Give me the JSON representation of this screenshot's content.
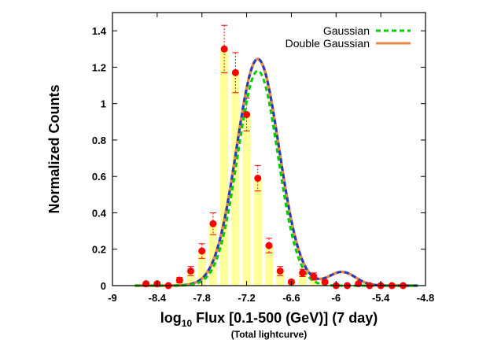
{
  "chart_data": {
    "type": "bar",
    "xlabel_main": "log",
    "xlabel_sub": "10",
    "xlabel_rest": " Flux [0.1-500 (GeV)] (7 day)",
    "xlabel_second": "(Total lightcurve)",
    "ylabel": "Normalized Counts",
    "xlim": [
      -9,
      -4.8
    ],
    "ylim": [
      0,
      1.5
    ],
    "xticks": [
      -9,
      -8.4,
      -7.8,
      -7.2,
      -6.6,
      -6,
      -5.4,
      -4.8
    ],
    "yticks": [
      0,
      0.2,
      0.4,
      0.6,
      0.8,
      1,
      1.2,
      1.4
    ],
    "xtick_labels": [
      "-9",
      "-8.4",
      "-7.8",
      "-7.2",
      "-6.6",
      "-6",
      "-5.4",
      "-4.8"
    ],
    "ytick_labels": [
      "0",
      "0.2",
      "0.4",
      "0.6",
      "0.8",
      "1",
      "1.2",
      "1.4"
    ],
    "bin_width": 0.15,
    "histogram": {
      "x": [
        -8.55,
        -8.4,
        -8.25,
        -8.1,
        -7.95,
        -7.8,
        -7.65,
        -7.5,
        -7.35,
        -7.2,
        -7.05,
        -6.9,
        -6.75,
        -6.6,
        -6.45,
        -6.3,
        -6.15,
        -6.0,
        -5.85,
        -5.7,
        -5.55,
        -5.4,
        -5.25,
        -5.1,
        -4.95
      ],
      "y": [
        0.01,
        0.01,
        0.0,
        0.03,
        0.08,
        0.19,
        0.34,
        1.3,
        1.17,
        0.94,
        0.59,
        0.22,
        0.08,
        0.02,
        0.07,
        0.05,
        0.02,
        0.0,
        0.0,
        0.01,
        0.0,
        0.0,
        0.0,
        0.0,
        0.0
      ],
      "err": [
        0.01,
        0.01,
        0.0,
        0.015,
        0.025,
        0.04,
        0.06,
        0.13,
        0.11,
        0.09,
        0.07,
        0.04,
        0.025,
        0.01,
        0.02,
        0.02,
        0.01,
        0.0,
        0.0,
        0.01,
        0.0,
        0.0,
        0.0,
        0.0,
        0.0
      ],
      "color": "#ffff99",
      "point_color": "#ff0000",
      "errorbar_color": "#ff0000"
    },
    "series": [
      {
        "name": "Gaussian",
        "amp": 1.18,
        "mu": -7.05,
        "sigma": 0.27,
        "color": "#00cc00",
        "dash": true
      },
      {
        "name": "Double Gaussian",
        "components": [
          {
            "amp": 1.245,
            "mu": -7.05,
            "sigma": 0.285
          },
          {
            "amp": 0.075,
            "mu": -5.92,
            "sigma": 0.18
          }
        ],
        "color": "#e8884a",
        "overlay_color": "#1f3fbf",
        "dash": false
      }
    ],
    "curve_range": [
      -8.7,
      -4.9
    ],
    "legend": "top-right",
    "grid": false
  }
}
